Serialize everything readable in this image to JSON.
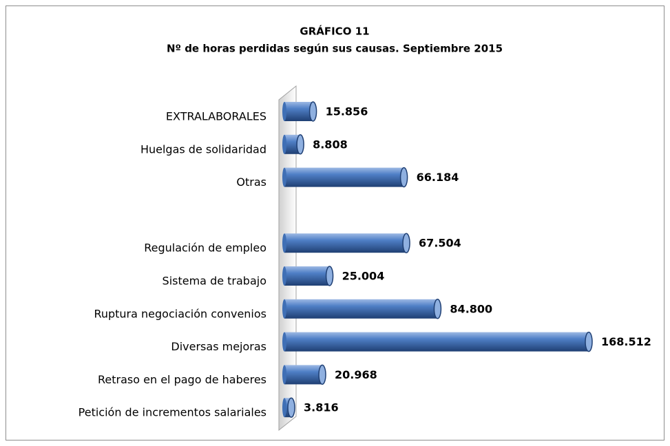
{
  "chart_data": {
    "type": "bar",
    "orientation": "horizontal",
    "title": "GRÁFICO 11",
    "subtitle": "Nº de horas perdidas según sus causas. Septiembre 2015",
    "categories": [
      "EXTRALABORALES",
      "Huelgas de solidaridad",
      "Otras",
      null,
      "Regulación de empleo",
      "Sistema de trabajo",
      "Ruptura negociación convenios",
      "Diversas mejoras ",
      "Retraso en el pago de haberes",
      "Petición de incrementos salariales"
    ],
    "values": [
      15856,
      8808,
      66184,
      null,
      67504,
      25004,
      84800,
      168512,
      20968,
      3816
    ],
    "value_labels": [
      "15.856",
      "8.808",
      "66.184",
      null,
      "67.504",
      "25.004",
      "84.800",
      "168.512",
      "20.968",
      "3.816"
    ],
    "color": "#3f6fb5"
  }
}
